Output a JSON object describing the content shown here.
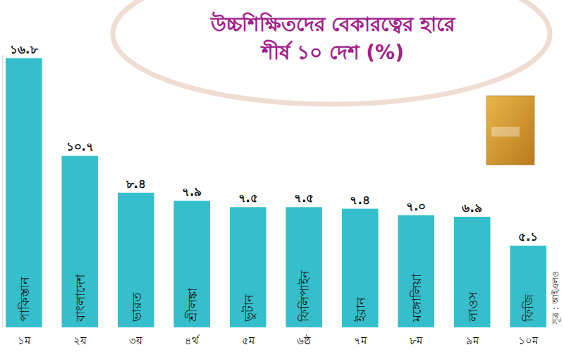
{
  "chart_data": {
    "type": "bar",
    "title": "উচ্চশিক্ষিতদের বেকারত্বের হারে শীর্ষ ১০ দেশ (%)",
    "categories": [
      "পাকিস্তান",
      "বাংলাদেশ",
      "ভারত",
      "শ্রীলঙ্কা",
      "ভুটান",
      "ফিলিপাইন",
      "ইরান",
      "মঙ্গোলিয়া",
      "লাওস",
      "ফিজি"
    ],
    "values": [
      16.8,
      10.7,
      8.4,
      7.9,
      7.5,
      7.5,
      7.4,
      7.0,
      6.9,
      5.1
    ],
    "value_labels": [
      "১৬.৮",
      "১০.৭",
      "৮.৪",
      "৭.৯",
      "৭.৫",
      "৭.৫",
      "৭.৪",
      "৭.০",
      "৬.৯",
      "৫.১"
    ],
    "rank_labels": [
      "১ম",
      "২য়",
      "৩য়",
      "৪র্থ",
      "৫ম",
      "৬ষ্ঠ",
      "৭ম",
      "৮ম",
      "৯ম",
      "১০ম"
    ],
    "source": "সূত্র : আইএলও",
    "color": "#35bfcc",
    "ylim": [
      0,
      17
    ],
    "data_labels": true,
    "tick_labels": false,
    "grid": false
  }
}
